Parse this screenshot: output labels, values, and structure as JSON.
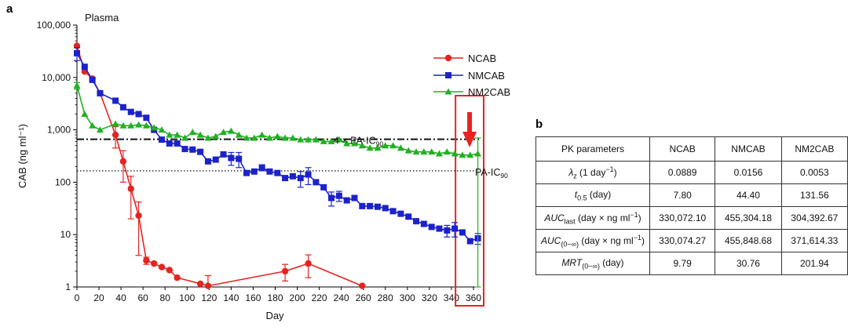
{
  "panel_labels": {
    "a": "a",
    "b": "b"
  },
  "chart_data": {
    "type": "line",
    "title": "Plasma",
    "xlabel": "Day",
    "ylabel": "CAB (ng ml⁻¹)",
    "yscale": "log",
    "xlim": [
      0,
      365
    ],
    "ylim": [
      1,
      100000
    ],
    "x_ticks": [
      0,
      20,
      40,
      60,
      80,
      100,
      120,
      140,
      160,
      180,
      200,
      220,
      240,
      260,
      280,
      300,
      320,
      340,
      360
    ],
    "y_ticks": [
      1,
      10,
      100,
      1000,
      10000,
      100000
    ],
    "y_tick_labels": [
      "1",
      "10",
      "100",
      "1,000",
      "10,000",
      "100,000"
    ],
    "legend": [
      "NCAB",
      "NMCAB",
      "NM2CAB"
    ],
    "colors": {
      "NCAB": "#e52421",
      "NMCAB": "#1c22c9",
      "NM2CAB": "#22b022",
      "highlight": "#e52421"
    },
    "reference_lines": [
      {
        "name": "4x-pa-ic90",
        "label": "4 × PA-IC",
        "subscript": "90",
        "value": 660,
        "style": "dashdot"
      },
      {
        "name": "pa-ic90",
        "label": "PA-IC",
        "subscript": "90",
        "value": 165,
        "style": "dotted"
      }
    ],
    "highlight_range": [
      348,
      365
    ],
    "series": [
      {
        "name": "NCAB",
        "marker": "circle",
        "x": [
          0,
          7,
          14,
          21,
          35,
          42,
          49,
          56,
          63,
          70,
          77,
          84,
          91,
          112,
          119,
          189,
          210,
          259
        ],
        "y": [
          40000,
          13000,
          9500,
          5000,
          800,
          250,
          75,
          23,
          3.2,
          2.8,
          2.4,
          2.1,
          1.5,
          1.15,
          1.05,
          2.0,
          2.8,
          1.05
        ],
        "err": [
          0,
          0,
          0,
          0,
          350,
          150,
          55,
          19,
          0.5,
          0,
          0,
          0,
          0,
          0,
          0.6,
          0.7,
          1.3,
          0
        ]
      },
      {
        "name": "NMCAB",
        "marker": "square",
        "x": [
          0,
          7,
          14,
          21,
          35,
          42,
          49,
          56,
          63,
          70,
          77,
          84,
          91,
          98,
          105,
          112,
          119,
          126,
          133,
          140,
          147,
          154,
          161,
          168,
          175,
          182,
          189,
          196,
          203,
          210,
          217,
          224,
          231,
          238,
          245,
          252,
          259,
          266,
          273,
          280,
          287,
          294,
          301,
          308,
          315,
          322,
          329,
          336,
          343,
          350,
          357,
          364
        ],
        "y": [
          29000,
          16000,
          9000,
          5000,
          3600,
          2700,
          2200,
          2000,
          1700,
          1000,
          650,
          550,
          550,
          430,
          420,
          380,
          250,
          270,
          340,
          290,
          280,
          150,
          160,
          190,
          160,
          150,
          120,
          130,
          120,
          140,
          100,
          80,
          50,
          55,
          45,
          50,
          35,
          35,
          34,
          32,
          28,
          25,
          22,
          18,
          16,
          14,
          13,
          12,
          13,
          11,
          7.5,
          8.5
        ],
        "err": [
          8000,
          0,
          0,
          0,
          0,
          0,
          0,
          0,
          0,
          0,
          0,
          0,
          0,
          0,
          0,
          0,
          0,
          0,
          0,
          80,
          90,
          0,
          0,
          25,
          0,
          0,
          0,
          0,
          40,
          50,
          0,
          0,
          15,
          12,
          0,
          0,
          0,
          0,
          0,
          0,
          0,
          0,
          0,
          0,
          0,
          0,
          0,
          3,
          4,
          0,
          0,
          2
        ]
      },
      {
        "name": "NM2CAB",
        "marker": "triangle",
        "x": [
          0,
          7,
          14,
          21,
          35,
          42,
          49,
          56,
          63,
          70,
          77,
          84,
          91,
          98,
          105,
          112,
          119,
          126,
          133,
          140,
          147,
          154,
          161,
          168,
          175,
          182,
          189,
          196,
          203,
          210,
          217,
          224,
          231,
          238,
          245,
          252,
          259,
          266,
          273,
          280,
          287,
          294,
          301,
          308,
          315,
          322,
          329,
          336,
          343,
          350,
          357,
          364
        ],
        "y": [
          7000,
          2000,
          1200,
          1000,
          1300,
          1200,
          1200,
          1250,
          1200,
          1100,
          1000,
          800,
          800,
          700,
          900,
          800,
          700,
          750,
          900,
          950,
          800,
          700,
          700,
          800,
          700,
          750,
          700,
          700,
          650,
          650,
          650,
          600,
          600,
          650,
          550,
          550,
          500,
          450,
          450,
          500,
          500,
          450,
          400,
          380,
          380,
          380,
          350,
          380,
          350,
          330,
          330,
          350
        ],
        "err": [
          1000,
          0,
          0,
          0,
          0,
          0,
          0,
          0,
          0,
          0,
          0,
          0,
          0,
          0,
          0,
          0,
          0,
          0,
          0,
          0,
          0,
          0,
          0,
          0,
          0,
          0,
          0,
          0,
          0,
          0,
          0,
          0,
          0,
          0,
          0,
          0,
          0,
          0,
          0,
          0,
          0,
          0,
          0,
          0,
          0,
          0,
          0,
          0,
          0,
          0,
          0,
          350
        ]
      }
    ]
  },
  "pk_table": {
    "header": [
      "PK parameters",
      "NCAB",
      "NMCAB",
      "NM2CAB"
    ],
    "rows": [
      {
        "param": "λ",
        "sub": "z",
        "rest": " (1 day",
        "sup": "−1",
        "tail": ")",
        "values": [
          "0.0889",
          "0.0156",
          "0.0053"
        ]
      },
      {
        "param": "t",
        "sub": "0.5",
        "rest": " (day)",
        "sup": "",
        "tail": "",
        "values": [
          "7.80",
          "44.40",
          "131.56"
        ]
      },
      {
        "param": "AUC",
        "sub": "last",
        "rest": " (day × ng ml",
        "sup": "−1",
        "tail": ")",
        "values": [
          "330,072.10",
          "455,304.18",
          "304,392.67"
        ]
      },
      {
        "param": "AUC",
        "sub": "(0−∞)",
        "rest": " (day × ng ml",
        "sup": "−1",
        "tail": ")",
        "values": [
          "330,074.27",
          "455,848.68",
          "371,614.33"
        ]
      },
      {
        "param": "MRT",
        "sub": "(0−∞)",
        "rest": " (day)",
        "sup": "",
        "tail": "",
        "values": [
          "9.79",
          "30.76",
          "201.94"
        ]
      }
    ]
  }
}
